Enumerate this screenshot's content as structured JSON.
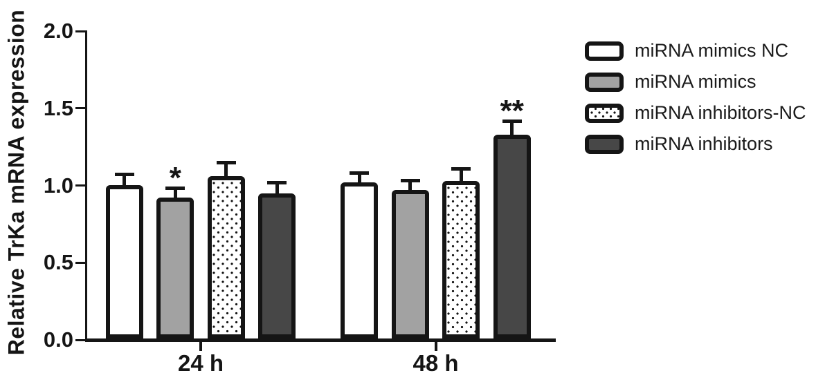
{
  "chart_data": {
    "type": "bar",
    "title": "",
    "xlabel": "",
    "ylabel": "Relative TrKa mRNA expression",
    "categories": [
      "24 h",
      "48 h"
    ],
    "series": [
      {
        "name": "miRNA mimics NC",
        "fill": "#ffffff",
        "pattern": "solid",
        "values": [
          1.0,
          1.02
        ],
        "errors": [
          0.08,
          0.07
        ],
        "significance": [
          "",
          ""
        ]
      },
      {
        "name": "miRNA mimics",
        "fill": "#a2a2a2",
        "pattern": "solid",
        "values": [
          0.92,
          0.97
        ],
        "errors": [
          0.07,
          0.07
        ],
        "significance": [
          "*",
          ""
        ]
      },
      {
        "name": "miRNA inhibitors-NC",
        "fill": "#ffffff",
        "pattern": "dots",
        "values": [
          1.06,
          1.03
        ],
        "errors": [
          0.1,
          0.09
        ],
        "significance": [
          "",
          ""
        ]
      },
      {
        "name": "miRNA inhibitors",
        "fill": "#474747",
        "pattern": "solid",
        "values": [
          0.95,
          1.33
        ],
        "errors": [
          0.08,
          0.1
        ],
        "significance": [
          "",
          "**"
        ]
      }
    ],
    "ylim": [
      0.0,
      2.0
    ],
    "yticks": [
      "0.0",
      "0.5",
      "1.0",
      "1.5",
      "2.0"
    ],
    "grid": false,
    "legend_position": "top-right",
    "error_bars": "upper whisker with cap",
    "significance_markers": [
      {
        "category": "24 h",
        "series": "miRNA mimics",
        "marker": "*"
      },
      {
        "category": "48 h",
        "series": "miRNA inhibitors",
        "marker": "**"
      }
    ],
    "colors": {
      "ink": "#151515",
      "white_fill": "#ffffff",
      "gray_fill": "#a2a2a2",
      "dark_fill": "#474747",
      "background": "#ffffff"
    }
  }
}
